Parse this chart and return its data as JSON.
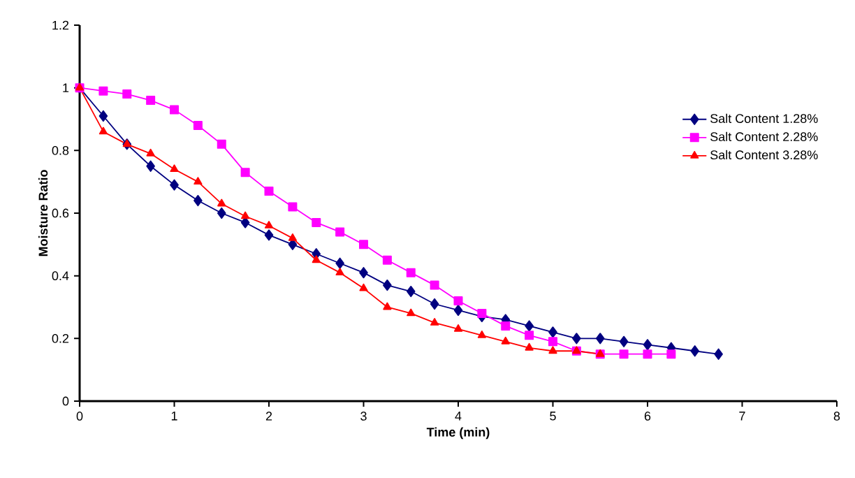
{
  "chart_data": {
    "type": "line",
    "xlabel": "Time (min)",
    "ylabel": "Moisture Ratio",
    "xlim": [
      0,
      8
    ],
    "xticks": [
      0,
      1,
      2,
      3,
      4,
      5,
      6,
      7,
      8
    ],
    "ylim": [
      0,
      1.2
    ],
    "yticks": [
      0,
      0.2,
      0.4,
      0.6,
      0.8,
      1,
      1.2
    ],
    "grid": false,
    "legend": "right",
    "line_style": "solid",
    "series": [
      {
        "name": "Salt Content 1.28%",
        "color": "#000080",
        "marker": "diamond",
        "x": [
          0,
          0.25,
          0.5,
          0.75,
          1,
          1.25,
          1.5,
          1.75,
          2,
          2.25,
          2.5,
          2.75,
          3,
          3.25,
          3.5,
          3.75,
          4,
          4.25,
          4.5,
          4.75,
          5,
          5.25,
          5.5,
          5.75,
          6,
          6.25,
          6.5,
          6.75
        ],
        "values": [
          1,
          0.91,
          0.82,
          0.75,
          0.69,
          0.64,
          0.6,
          0.57,
          0.53,
          0.5,
          0.47,
          0.44,
          0.41,
          0.37,
          0.35,
          0.31,
          0.29,
          0.27,
          0.26,
          0.24,
          0.22,
          0.2,
          0.2,
          0.19,
          0.18,
          0.17,
          0.16,
          0.15
        ]
      },
      {
        "name": "Salt Content 2.28%",
        "color": "#ff00ff",
        "marker": "square",
        "x": [
          0,
          0.25,
          0.5,
          0.75,
          1,
          1.25,
          1.5,
          1.75,
          2,
          2.25,
          2.5,
          2.75,
          3,
          3.25,
          3.5,
          3.75,
          4,
          4.25,
          4.5,
          4.75,
          5,
          5.25,
          5.5,
          5.75,
          6,
          6.25
        ],
        "values": [
          1,
          0.99,
          0.98,
          0.96,
          0.93,
          0.88,
          0.82,
          0.73,
          0.67,
          0.62,
          0.57,
          0.54,
          0.5,
          0.45,
          0.41,
          0.37,
          0.32,
          0.28,
          0.24,
          0.21,
          0.19,
          0.16,
          0.15,
          0.15,
          0.15,
          0.15
        ]
      },
      {
        "name": "Salt Content 3.28%",
        "color": "#ff0000",
        "marker": "triangle",
        "x": [
          0,
          0.25,
          0.5,
          0.75,
          1,
          1.25,
          1.5,
          1.75,
          2,
          2.25,
          2.5,
          2.75,
          3,
          3.25,
          3.5,
          3.75,
          4,
          4.25,
          4.5,
          4.75,
          5,
          5.25,
          5.5
        ],
        "values": [
          1,
          0.86,
          0.82,
          0.79,
          0.74,
          0.7,
          0.63,
          0.59,
          0.56,
          0.52,
          0.45,
          0.41,
          0.36,
          0.3,
          0.28,
          0.25,
          0.23,
          0.21,
          0.19,
          0.17,
          0.16,
          0.16,
          0.15
        ]
      }
    ]
  }
}
